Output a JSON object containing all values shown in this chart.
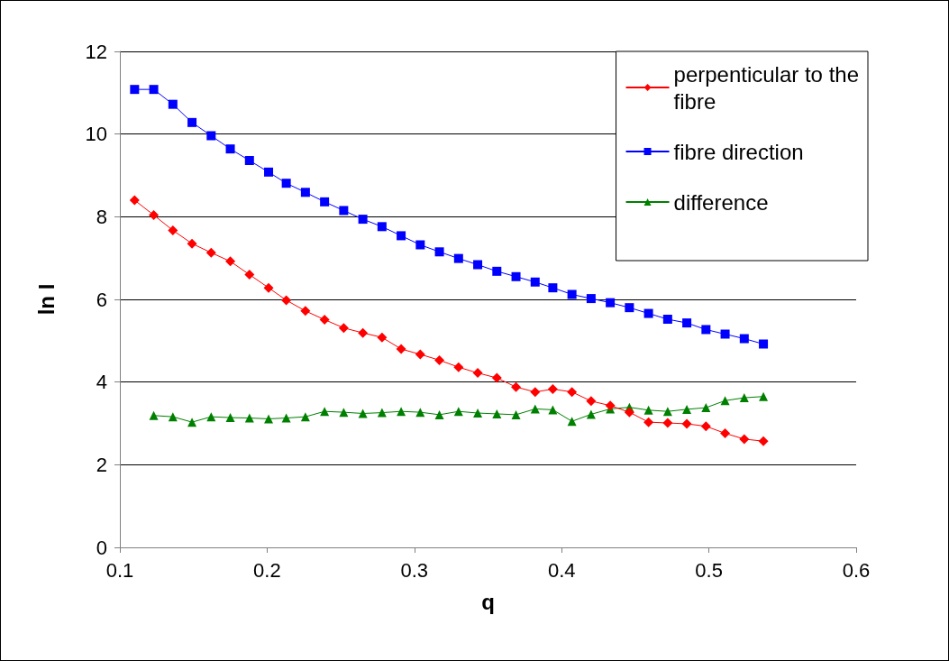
{
  "chart_data": {
    "type": "line",
    "xlabel": "q",
    "ylabel": "ln I",
    "x": [
      0.11,
      0.123,
      0.136,
      0.149,
      0.162,
      0.175,
      0.188,
      0.201,
      0.213,
      0.226,
      0.239,
      0.252,
      0.265,
      0.278,
      0.291,
      0.304,
      0.317,
      0.33,
      0.343,
      0.356,
      0.369,
      0.382,
      0.394,
      0.407,
      0.42,
      0.433,
      0.446,
      0.459,
      0.472,
      0.485,
      0.498,
      0.511,
      0.524,
      0.537
    ],
    "series": [
      {
        "name": "perpenticular to the fibre",
        "color": "#ff0000",
        "marker": "diamond",
        "values": [
          8.4,
          8.04,
          7.67,
          7.35,
          7.13,
          6.92,
          6.6,
          6.28,
          5.98,
          5.72,
          5.51,
          5.31,
          5.19,
          5.08,
          4.8,
          4.67,
          4.53,
          4.36,
          4.22,
          4.1,
          3.88,
          3.76,
          3.83,
          3.76,
          3.54,
          3.43,
          3.27,
          3.03,
          3.01,
          2.99,
          2.93,
          2.76,
          2.62,
          2.57
        ]
      },
      {
        "name": "fibre direction",
        "color": "#0000ff",
        "marker": "square",
        "values": [
          11.08,
          11.08,
          10.72,
          10.28,
          9.96,
          9.64,
          9.36,
          9.08,
          8.81,
          8.59,
          8.36,
          8.15,
          7.94,
          7.76,
          7.54,
          7.32,
          7.15,
          6.99,
          6.84,
          6.68,
          6.55,
          6.42,
          6.28,
          6.12,
          6.02,
          5.92,
          5.8,
          5.66,
          5.52,
          5.43,
          5.27,
          5.16,
          5.05,
          4.92
        ]
      },
      {
        "name": "difference",
        "color": "#008000",
        "marker": "triangle",
        "values": [
          null,
          3.19,
          3.16,
          3.03,
          3.16,
          3.14,
          3.13,
          3.11,
          3.13,
          3.16,
          3.29,
          3.27,
          3.24,
          3.26,
          3.29,
          3.27,
          3.21,
          3.29,
          3.25,
          3.23,
          3.21,
          3.35,
          3.33,
          3.05,
          3.22,
          3.35,
          3.39,
          3.32,
          3.29,
          3.34,
          3.38,
          3.55,
          3.62,
          3.65
        ]
      }
    ],
    "xlim": [
      0.1,
      0.6
    ],
    "xticks": [
      0.1,
      0.2,
      0.3,
      0.4,
      0.5,
      0.6
    ],
    "ylim": [
      0,
      12
    ],
    "yticks": [
      0,
      2,
      4,
      6,
      8,
      10,
      12
    ],
    "grid": "y",
    "legend": "top right",
    "line_style": "solid"
  }
}
